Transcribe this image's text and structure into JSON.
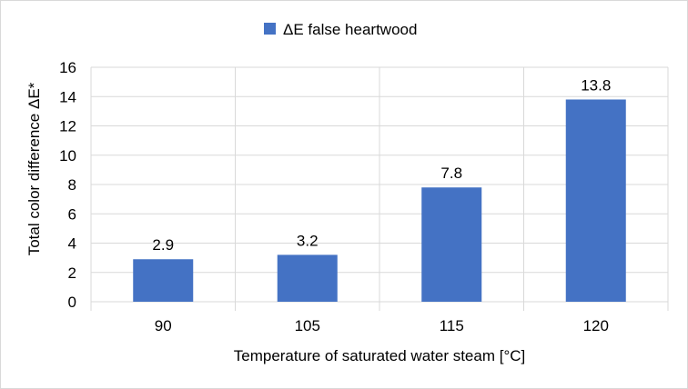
{
  "chart_data": {
    "type": "bar",
    "title": "",
    "categories": [
      "90",
      "105",
      "115",
      "120"
    ],
    "series": [
      {
        "name": "ΔE false heartwood",
        "values": [
          2.9,
          3.2,
          7.8,
          13.8
        ],
        "color": "#4472c4"
      }
    ],
    "data_labels": [
      "2.9",
      "3.2",
      "7.8",
      "13.8"
    ],
    "xlabel": "Temperature of saturated water steam [°C]",
    "ylabel": "Total color difference ΔE*",
    "ylim": [
      0,
      16
    ],
    "yticks": [
      0,
      2,
      4,
      6,
      8,
      10,
      12,
      14,
      16
    ],
    "ytick_labels": [
      "0",
      "2",
      "4",
      "6",
      "8",
      "10",
      "12",
      "14",
      "16"
    ],
    "grid": true,
    "legend_position": "top"
  }
}
